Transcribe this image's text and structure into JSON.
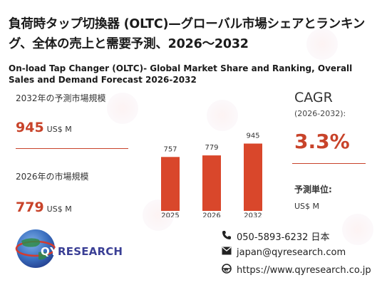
{
  "title_jp": "負荷時タップ切換器 (OLTC)—グローバル市場シェアとランキング、全体の売上と需要予測、2026～2032",
  "title_en": "On-load Tap Changer (OLTC)- Global Market Share and Ranking, Overall Sales and Demand Forecast 2026-2032",
  "left_panel": {
    "forecast_label": "2032年の予測市場規模",
    "forecast_value": "945",
    "forecast_unit": "US$ M",
    "current_label": "2026年の市場規模",
    "current_value": "779",
    "current_unit": "US$ M"
  },
  "cagr": {
    "title": "CAGR",
    "range": "(2026-2032):",
    "value": "3.3%"
  },
  "forecast_unit": {
    "label": "予測単位:",
    "value": "US$ M"
  },
  "chart_data": {
    "type": "bar",
    "categories": [
      "2025",
      "2026",
      "2032"
    ],
    "values": [
      757,
      779,
      945
    ],
    "value_labels": [
      "757",
      "779",
      "945"
    ],
    "bar_color": "#d9472b",
    "title": "",
    "xlabel": "",
    "ylabel": ""
  },
  "contact": {
    "phone": "050-5893-6232 日本",
    "email": "japan@qyresearch.com",
    "website": "https://www.qyresearch.co.jp"
  },
  "logo": {
    "text_prefix": "QY",
    "text_suffix": "RESEARCH"
  },
  "colors": {
    "accent": "#c8432a",
    "logo_blue": "#3a3f95"
  },
  "icons": {
    "phone": "phone-icon",
    "email": "email-icon",
    "web": "globe-icon"
  }
}
